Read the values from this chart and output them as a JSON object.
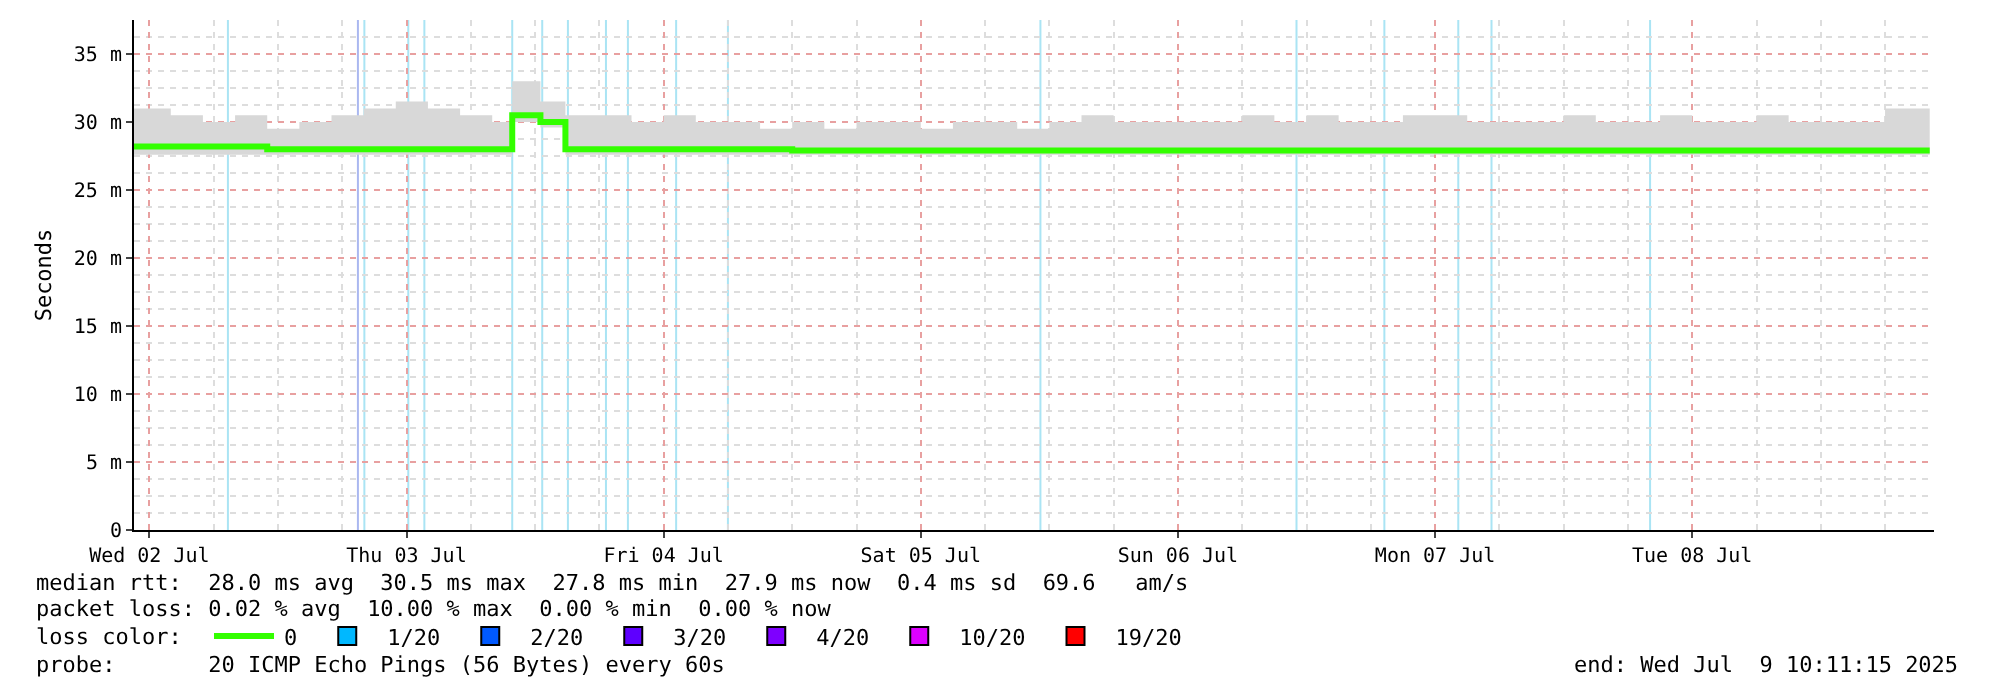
{
  "chart_data": {
    "type": "step",
    "ylabel": "Seconds",
    "xlim": [
      "2025-07-02T10:34",
      "2025-07-09T10:34"
    ],
    "xticks": [
      {
        "value": "2025-07-02T12:00",
        "label": "Wed 02 Jul"
      },
      {
        "value": "2025-07-03T12:00",
        "label": "Thu 03 Jul"
      },
      {
        "value": "2025-07-04T12:00",
        "label": "Fri 04 Jul"
      },
      {
        "value": "2025-07-05T12:00",
        "label": "Sat 05 Jul"
      },
      {
        "value": "2025-07-06T12:00",
        "label": "Sun 06 Jul"
      },
      {
        "value": "2025-07-07T12:00",
        "label": "Mon 07 Jul"
      },
      {
        "value": "2025-07-08T12:00",
        "label": "Tue 08 Jul"
      }
    ],
    "ylim": [
      0,
      37.5
    ],
    "yticks": [
      0,
      {
        "value": 5,
        "label": "5 m"
      },
      {
        "value": 10,
        "label": "10 m"
      },
      {
        "value": 15,
        "label": "15 m"
      },
      {
        "value": 20,
        "label": "20 m"
      },
      {
        "value": 25,
        "label": "25 m"
      },
      {
        "value": 30,
        "label": "30 m"
      },
      {
        "value": 35,
        "label": "35 m"
      }
    ],
    "grid": true,
    "marker": "none",
    "legend": "bottom left",
    "x": [
      "2025-07-02T10:34",
      "2025-07-02T14:00",
      "2025-07-02T17:00",
      "2025-07-02T20:00",
      "2025-07-02T23:00",
      "2025-07-03T02:00",
      "2025-07-03T05:00",
      "2025-07-03T08:00",
      "2025-07-03T11:00",
      "2025-07-03T14:00",
      "2025-07-03T17:00",
      "2025-07-03T20:00",
      "2025-07-03T21:52",
      "2025-07-04T00:30",
      "2025-07-04T02:50",
      "2025-07-04T06:00",
      "2025-07-04T09:00",
      "2025-07-04T12:00",
      "2025-07-04T15:00",
      "2025-07-04T18:00",
      "2025-07-04T21:00",
      "2025-07-05T00:00",
      "2025-07-05T03:00",
      "2025-07-05T06:00",
      "2025-07-05T09:00",
      "2025-07-05T12:00",
      "2025-07-05T15:00",
      "2025-07-05T18:00",
      "2025-07-05T21:00",
      "2025-07-06T00:00",
      "2025-07-06T03:00",
      "2025-07-06T06:00",
      "2025-07-06T09:00",
      "2025-07-06T12:00",
      "2025-07-06T15:00",
      "2025-07-06T18:00",
      "2025-07-06T21:00",
      "2025-07-07T00:00",
      "2025-07-07T03:00",
      "2025-07-07T06:00",
      "2025-07-07T09:00",
      "2025-07-07T12:00",
      "2025-07-07T15:00",
      "2025-07-07T18:00",
      "2025-07-07T21:00",
      "2025-07-08T00:00",
      "2025-07-08T03:00",
      "2025-07-08T06:00",
      "2025-07-08T09:00",
      "2025-07-08T12:00",
      "2025-07-08T15:00",
      "2025-07-08T18:00",
      "2025-07-08T21:00",
      "2025-07-09T00:00",
      "2025-07-09T03:00",
      "2025-07-09T06:00",
      "2025-07-09T10:10"
    ],
    "series": [
      {
        "name": "0",
        "color": "#33ff00",
        "values": [
          28.2,
          28.2,
          28.2,
          28.2,
          28.0,
          28.0,
          28.0,
          28.0,
          28.0,
          28.0,
          28.0,
          28.0,
          30.5,
          30.0,
          28.0,
          28.0,
          28.0,
          28.0,
          28.0,
          28.0,
          28.0,
          27.9,
          27.9,
          27.9,
          27.9,
          27.9,
          27.9,
          27.9,
          27.9,
          27.9,
          27.9,
          27.9,
          27.9,
          27.9,
          27.9,
          27.9,
          27.9,
          27.9,
          27.9,
          27.9,
          27.9,
          27.9,
          27.9,
          27.9,
          27.9,
          27.9,
          27.9,
          27.9,
          27.9,
          27.9,
          27.9,
          27.9,
          27.9,
          27.9,
          27.9,
          27.9,
          27.9
        ],
        "lower": [
          27.6,
          27.6,
          27.6,
          27.6,
          27.6,
          27.6,
          27.6,
          27.6,
          27.6,
          27.6,
          27.6,
          27.6,
          30.0,
          29.6,
          27.6,
          27.6,
          27.6,
          27.6,
          27.6,
          27.6,
          27.6,
          27.6,
          27.6,
          27.6,
          27.6,
          27.6,
          27.6,
          27.6,
          27.6,
          27.6,
          27.6,
          27.6,
          27.6,
          27.6,
          27.6,
          27.6,
          27.6,
          27.6,
          27.6,
          27.6,
          27.6,
          27.6,
          27.6,
          27.6,
          27.6,
          27.6,
          27.6,
          27.6,
          27.6,
          27.6,
          27.6,
          27.6,
          27.6,
          27.6,
          27.6,
          27.6,
          27.6
        ],
        "upper": [
          31,
          30.5,
          30,
          30.5,
          29.5,
          30,
          30.5,
          31,
          31.5,
          31,
          30.5,
          30,
          33,
          31.5,
          30.5,
          30.5,
          30,
          30.5,
          30,
          30,
          29.5,
          30,
          29.5,
          30,
          30,
          29.5,
          30,
          30,
          29.5,
          30,
          30.5,
          30,
          30,
          30,
          30,
          30.5,
          30,
          30.5,
          30,
          30,
          30.5,
          30.5,
          30,
          30,
          30,
          30.5,
          30,
          30,
          30.5,
          30,
          30,
          30.5,
          30,
          30,
          30,
          31,
          30.5
        ]
      },
      {
        "name": "1/20",
        "color": "#00b8ff",
        "values": [
          null,
          null,
          null,
          null,
          null,
          null,
          null,
          null,
          null,
          null,
          null,
          null,
          null,
          null,
          null,
          null,
          null,
          null,
          null,
          null,
          null,
          null,
          null,
          null,
          null,
          null,
          null,
          null,
          null,
          null,
          null,
          null,
          null,
          null,
          null,
          null,
          null,
          null,
          null,
          null,
          null,
          null,
          null,
          null,
          null,
          null,
          null,
          null,
          null,
          null,
          null,
          null,
          null,
          null,
          null,
          null,
          null
        ]
      },
      {
        "name": "2/20",
        "color": "#0059ff",
        "values": [
          null,
          null,
          null,
          null,
          null,
          null,
          null,
          null,
          null,
          null,
          null,
          null,
          null,
          null,
          null,
          null,
          null,
          null,
          null,
          null,
          null,
          null,
          null,
          null,
          null,
          null,
          null,
          null,
          null,
          null,
          null,
          null,
          null,
          null,
          null,
          null,
          null,
          null,
          null,
          null,
          null,
          null,
          null,
          null,
          null,
          null,
          null,
          null,
          null,
          null,
          null,
          null,
          null,
          null,
          null,
          null,
          null
        ]
      },
      {
        "name": "3/20",
        "color": "#5e00ff",
        "values": [
          null,
          null,
          null,
          null,
          null,
          null,
          null,
          null,
          null,
          null,
          null,
          null,
          null,
          null,
          null,
          null,
          null,
          null,
          null,
          null,
          null,
          null,
          null,
          null,
          null,
          null,
          null,
          null,
          null,
          null,
          null,
          null,
          null,
          null,
          null,
          null,
          null,
          null,
          null,
          null,
          null,
          null,
          null,
          null,
          null,
          null,
          null,
          null,
          null,
          null,
          null,
          null,
          null,
          null,
          null,
          null,
          null
        ]
      },
      {
        "name": "4/20",
        "color": "#7e00ff",
        "values": [
          null,
          null,
          null,
          null,
          null,
          null,
          null,
          null,
          null,
          null,
          null,
          null,
          null,
          null,
          null,
          null,
          null,
          null,
          null,
          null,
          null,
          null,
          null,
          null,
          null,
          null,
          null,
          null,
          null,
          null,
          null,
          null,
          null,
          null,
          null,
          null,
          null,
          null,
          null,
          null,
          null,
          null,
          null,
          null,
          null,
          null,
          null,
          null,
          null,
          null,
          null,
          null,
          null,
          null,
          null,
          null,
          null
        ]
      },
      {
        "name": "10/20",
        "color": "#dd00ff",
        "values": [
          null,
          null,
          null,
          null,
          null,
          null,
          null,
          null,
          null,
          null,
          null,
          null,
          null,
          null,
          null,
          null,
          null,
          null,
          null,
          null,
          null,
          null,
          null,
          null,
          null,
          null,
          null,
          null,
          null,
          null,
          null,
          null,
          null,
          null,
          null,
          null,
          null,
          null,
          null,
          null,
          null,
          null,
          null,
          null,
          null,
          null,
          null,
          null,
          null,
          null,
          null,
          null,
          null,
          null,
          null,
          null,
          null
        ]
      },
      {
        "name": "19/20",
        "color": "#ff0000",
        "values": [
          null,
          null,
          null,
          null,
          null,
          null,
          null,
          null,
          null,
          null,
          null,
          null,
          null,
          null,
          null,
          null,
          null,
          null,
          null,
          null,
          null,
          null,
          null,
          null,
          null,
          null,
          null,
          null,
          null,
          null,
          null,
          null,
          null,
          null,
          null,
          null,
          null,
          null,
          null,
          null,
          null,
          null,
          null,
          null,
          null,
          null,
          null,
          null,
          null,
          null,
          null,
          null,
          null,
          null,
          null,
          null,
          null
        ]
      }
    ],
    "ref_lines": [
      {
        "axis": "x",
        "value": "2025-07-02T19:20",
        "color": "#aae4f4"
      },
      {
        "axis": "x",
        "value": "2025-07-03T07:28",
        "color": "#aab8f0"
      },
      {
        "axis": "x",
        "value": "2025-07-03T08:04",
        "color": "#aae4f4"
      },
      {
        "axis": "x",
        "value": "2025-07-03T12:10",
        "color": "#aae4f4"
      },
      {
        "axis": "x",
        "value": "2025-07-03T13:40",
        "color": "#aae4f4"
      },
      {
        "axis": "x",
        "value": "2025-07-03T21:52",
        "color": "#aae4f4"
      },
      {
        "axis": "x",
        "value": "2025-07-04T00:40",
        "color": "#aae4f4"
      },
      {
        "axis": "x",
        "value": "2025-07-04T03:04",
        "color": "#aae4f4"
      },
      {
        "axis": "x",
        "value": "2025-07-04T06:37",
        "color": "#aae4f4"
      },
      {
        "axis": "x",
        "value": "2025-07-04T08:40",
        "color": "#aae4f4"
      },
      {
        "axis": "x",
        "value": "2025-07-04T13:10",
        "color": "#aae4f4"
      },
      {
        "axis": "x",
        "value": "2025-07-04T18:00",
        "color": "#aae4f4"
      },
      {
        "axis": "x",
        "value": "2025-07-05T23:10",
        "color": "#aae4f4"
      },
      {
        "axis": "x",
        "value": "2025-07-06T23:04",
        "color": "#aae4f4"
      },
      {
        "axis": "x",
        "value": "2025-07-07T07:16",
        "color": "#aae4f4"
      },
      {
        "axis": "x",
        "value": "2025-07-07T14:10",
        "color": "#aae4f4"
      },
      {
        "axis": "x",
        "value": "2025-07-07T17:16",
        "color": "#aae4f4"
      },
      {
        "axis": "x",
        "value": "2025-07-08T08:04",
        "color": "#aae4f4"
      }
    ],
    "annotations": [
      "median rtt:  28.0 ms avg  30.5 ms max  27.8 ms min  27.9 ms now  0.4 ms sd  69.6   am/s",
      "packet loss: 0.02 % avg  10.00 % max  0.00 % min  0.00 % now",
      "loss color:",
      "probe:       20 ICMP Echo Pings (56 Bytes) every 60s",
      "end: Wed Jul  9 10:11:15 2025"
    ]
  }
}
